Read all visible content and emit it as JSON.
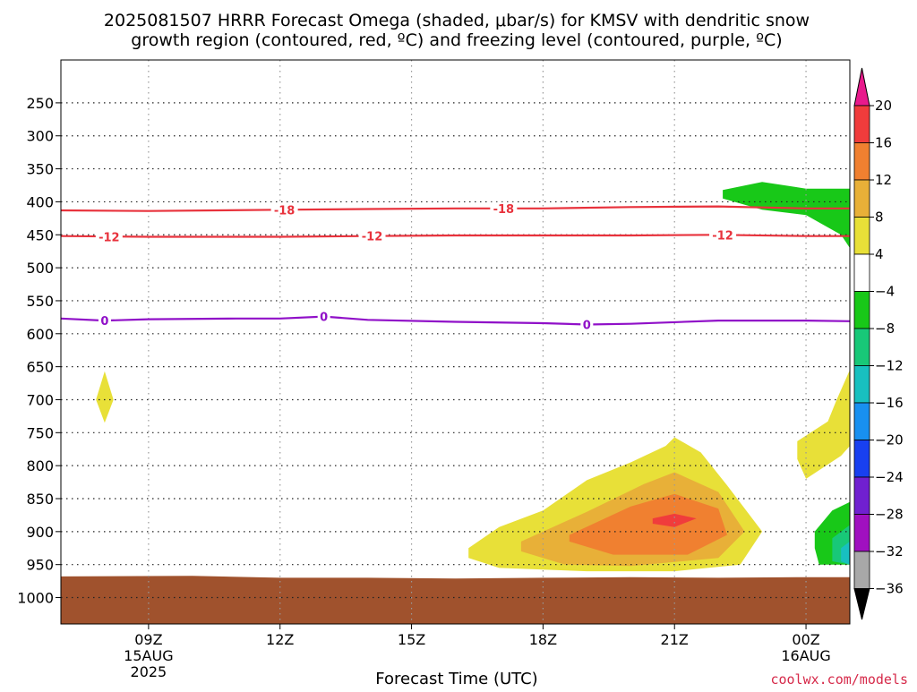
{
  "title": {
    "line1": "2025081507 HRRR Forecast Omega (shaded, μbar/s) for KMSV with dendritic snow",
    "line2": "growth region (contoured, red, ºC) and freezing level (contoured, purple, ºC)"
  },
  "credit": "coolwx.com/models",
  "chart_data": {
    "type": "time-height contour",
    "xlabel": "Forecast Time (UTC)",
    "ylabel": "",
    "x_units": "forecast hour (UTC, 2025-08-15)",
    "x_range": [
      7,
      25
    ],
    "y_units": "hPa",
    "y_range": [
      1040,
      185
    ],
    "x_ticks": [
      {
        "x": 9,
        "label": "09Z",
        "sub1": "15AUG",
        "sub2": "2025"
      },
      {
        "x": 12,
        "label": "12Z",
        "sub1": "",
        "sub2": ""
      },
      {
        "x": 15,
        "label": "15Z",
        "sub1": "",
        "sub2": ""
      },
      {
        "x": 18,
        "label": "18Z",
        "sub1": "",
        "sub2": ""
      },
      {
        "x": 21,
        "label": "21Z",
        "sub1": "",
        "sub2": ""
      },
      {
        "x": 24,
        "label": "00Z",
        "sub1": "16AUG",
        "sub2": ""
      }
    ],
    "y_ticks": [
      250,
      300,
      350,
      400,
      450,
      500,
      550,
      600,
      650,
      700,
      750,
      800,
      850,
      900,
      950,
      1000
    ],
    "grid": "dotted",
    "colorbar": {
      "labels": [
        "20",
        "16",
        "12",
        "8",
        "4",
        "−4",
        "−8",
        "−12",
        "−16",
        "−20",
        "−24",
        "−28",
        "−32",
        "−36"
      ],
      "colors": [
        "#e81a8c",
        "#f03c3c",
        "#f08030",
        "#e8b038",
        "#e8e038",
        "#ffffff",
        "#18c818",
        "#18c878",
        "#18c0c0",
        "#1890f0",
        "#1840f0",
        "#7020d0",
        "#a010c0",
        "#a8a8a8",
        "#000000"
      ]
    },
    "contours": [
      {
        "name": "-18",
        "color": "#e8323c",
        "points": [
          [
            7.0,
            413
          ],
          [
            9.0,
            414
          ],
          [
            12.0,
            412
          ],
          [
            14.0,
            411
          ],
          [
            16.0,
            410
          ],
          [
            18.0,
            410
          ],
          [
            20.0,
            408
          ],
          [
            22.0,
            407
          ],
          [
            24.0,
            410
          ],
          [
            25.0,
            410
          ]
        ],
        "labels": [
          [
            12.1,
            412
          ],
          [
            17.1,
            410
          ]
        ]
      },
      {
        "name": "-12",
        "color": "#e8323c",
        "points": [
          [
            7.0,
            452
          ],
          [
            9.0,
            453
          ],
          [
            12.0,
            453
          ],
          [
            14.0,
            452
          ],
          [
            16.0,
            451
          ],
          [
            18.0,
            451
          ],
          [
            20.0,
            451
          ],
          [
            22.0,
            450
          ],
          [
            24.0,
            452
          ],
          [
            25.0,
            452
          ]
        ],
        "labels": [
          [
            8.1,
            453
          ],
          [
            14.1,
            452
          ],
          [
            22.1,
            450
          ]
        ]
      },
      {
        "name": "0",
        "color": "#9010c8",
        "points": [
          [
            7.0,
            577
          ],
          [
            8.0,
            580
          ],
          [
            9.0,
            578
          ],
          [
            11.0,
            577
          ],
          [
            12.0,
            577
          ],
          [
            13.0,
            574
          ],
          [
            14.0,
            579
          ],
          [
            16.0,
            582
          ],
          [
            18.0,
            584
          ],
          [
            19.0,
            586
          ],
          [
            20.0,
            585
          ],
          [
            22.0,
            580
          ],
          [
            24.0,
            580
          ],
          [
            25.0,
            581
          ]
        ],
        "labels": [
          [
            8.0,
            580
          ],
          [
            13.0,
            574
          ],
          [
            19.0,
            586
          ]
        ]
      }
    ],
    "omega_regions": [
      {
        "color": "#e8e038",
        "name": "4",
        "points": [
          [
            16.3,
            925
          ],
          [
            17.0,
            893
          ],
          [
            18.0,
            868
          ],
          [
            19.0,
            822
          ],
          [
            20.0,
            795
          ],
          [
            20.8,
            770
          ],
          [
            21.0,
            757
          ],
          [
            21.6,
            780
          ],
          [
            22.2,
            830
          ],
          [
            23.0,
            900
          ],
          [
            22.5,
            950
          ],
          [
            21.0,
            960
          ],
          [
            19.0,
            960
          ],
          [
            17.0,
            955
          ],
          [
            16.3,
            940
          ]
        ]
      },
      {
        "color": "#e8b038",
        "name": "8",
        "points": [
          [
            17.5,
            915
          ],
          [
            19.0,
            870
          ],
          [
            20.3,
            828
          ],
          [
            21.0,
            810
          ],
          [
            22.0,
            840
          ],
          [
            22.6,
            900
          ],
          [
            22.0,
            940
          ],
          [
            20.0,
            952
          ],
          [
            18.5,
            950
          ],
          [
            17.5,
            930
          ]
        ]
      },
      {
        "color": "#f08030",
        "name": "12",
        "points": [
          [
            18.6,
            905
          ],
          [
            20.0,
            862
          ],
          [
            21.0,
            843
          ],
          [
            22.0,
            865
          ],
          [
            22.2,
            905
          ],
          [
            21.3,
            935
          ],
          [
            19.6,
            935
          ],
          [
            18.6,
            915
          ]
        ]
      },
      {
        "color": "#f03c3c",
        "name": "16",
        "points": [
          [
            20.5,
            880
          ],
          [
            21.0,
            873
          ],
          [
            21.5,
            880
          ],
          [
            21.0,
            893
          ],
          [
            20.5,
            888
          ]
        ]
      },
      {
        "color": "#e8e038",
        "name": "4",
        "points": [
          [
            8.0,
            657
          ],
          [
            8.2,
            700
          ],
          [
            8.0,
            735
          ],
          [
            7.8,
            700
          ]
        ]
      },
      {
        "color": "#e8e038",
        "name": "4",
        "points": [
          [
            23.8,
            763
          ],
          [
            24.5,
            733
          ],
          [
            24.7,
            700
          ],
          [
            25.0,
            655
          ],
          [
            25.0,
            770
          ],
          [
            24.8,
            785
          ],
          [
            24.0,
            820
          ],
          [
            23.8,
            790
          ]
        ]
      },
      {
        "color": "#18c818",
        "name": "-4",
        "points": [
          [
            22.1,
            382
          ],
          [
            23.0,
            370
          ],
          [
            24.0,
            380
          ],
          [
            24.9,
            380
          ],
          [
            25.0,
            380
          ],
          [
            25.0,
            470
          ],
          [
            24.8,
            450
          ],
          [
            24.0,
            420
          ],
          [
            23.0,
            412
          ],
          [
            22.1,
            395
          ]
        ]
      },
      {
        "color": "#18c818",
        "name": "-4",
        "points": [
          [
            24.2,
            900
          ],
          [
            24.6,
            868
          ],
          [
            25.0,
            855
          ],
          [
            25.0,
            950
          ],
          [
            24.3,
            950
          ],
          [
            24.2,
            925
          ]
        ]
      },
      {
        "color": "#18c878",
        "name": "-8",
        "points": [
          [
            24.6,
            910
          ],
          [
            25.0,
            890
          ],
          [
            25.0,
            950
          ],
          [
            24.6,
            945
          ]
        ]
      },
      {
        "color": "#18c0c0",
        "name": "-12",
        "points": [
          [
            24.8,
            925
          ],
          [
            25.0,
            915
          ],
          [
            25.0,
            950
          ],
          [
            24.8,
            945
          ]
        ]
      }
    ],
    "terrain": {
      "color": "#a0522d",
      "points": [
        [
          7.0,
          968
        ],
        [
          10.0,
          967
        ],
        [
          12.0,
          970
        ],
        [
          14.0,
          970
        ],
        [
          16.0,
          971
        ],
        [
          18.0,
          970
        ],
        [
          20.0,
          969
        ],
        [
          22.0,
          970
        ],
        [
          24.0,
          969
        ],
        [
          25.0,
          969
        ]
      ]
    }
  }
}
